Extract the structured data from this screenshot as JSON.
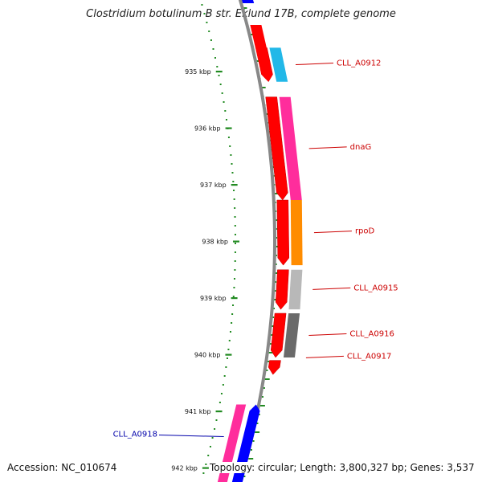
{
  "title": "Clostridium botulinum B str. Eklund 17B, complete genome",
  "footer": {
    "accession": "Accession: NC_010674",
    "info": "Topology: circular; Length: 3,800,327 bp; Genes: 3,537"
  },
  "ticks": [
    {
      "label": "935 kbp",
      "kbp": 935
    },
    {
      "label": "936 kbp",
      "kbp": 936
    },
    {
      "label": "937 kbp",
      "kbp": 937
    },
    {
      "label": "938 kbp",
      "kbp": 938
    },
    {
      "label": "939 kbp",
      "kbp": 939
    },
    {
      "label": "940 kbp",
      "kbp": 940
    },
    {
      "label": "941 kbp",
      "kbp": 941
    },
    {
      "label": "942 kbp",
      "kbp": 942
    }
  ],
  "genes": [
    {
      "name": "CLL_A0912",
      "label_color": "#cc0000",
      "start_kbp": 934.58,
      "end_kbp": 935.18,
      "color": "#22b8e8",
      "strand": "+"
    },
    {
      "name": "dnaG",
      "label_color": "#cc0000",
      "start_kbp": 935.45,
      "end_kbp": 937.27,
      "color": "#ff2d9c",
      "strand": "+"
    },
    {
      "name": "rpoD",
      "label_color": "#cc0000",
      "start_kbp": 937.27,
      "end_kbp": 938.42,
      "color": "#ff8c00",
      "strand": "+"
    },
    {
      "name": "CLL_A0915",
      "label_color": "#cc0000",
      "start_kbp": 938.5,
      "end_kbp": 939.2,
      "color": "#b8b8b8",
      "strand": "+"
    },
    {
      "name": "CLL_A0916",
      "label_color": "#cc0000",
      "start_kbp": 939.27,
      "end_kbp": 940.05,
      "color": "#6a6a6a",
      "strand": "+"
    },
    {
      "name": "CLL_A0917",
      "label_color": "#cc0000",
      "start_kbp": 940.1,
      "end_kbp": 940.35,
      "color": "#ff0000",
      "strand": "+"
    },
    {
      "name": "CLL_A0918",
      "label_color": "#0000aa",
      "start_kbp": 940.88,
      "end_kbp": 942.3,
      "color": "#ff2d9c",
      "strand": "-"
    }
  ],
  "colors": {
    "cds": "#ff0000",
    "reverse_cds": "#0000ff",
    "backbone": "#888888",
    "tick": "#228b22"
  }
}
